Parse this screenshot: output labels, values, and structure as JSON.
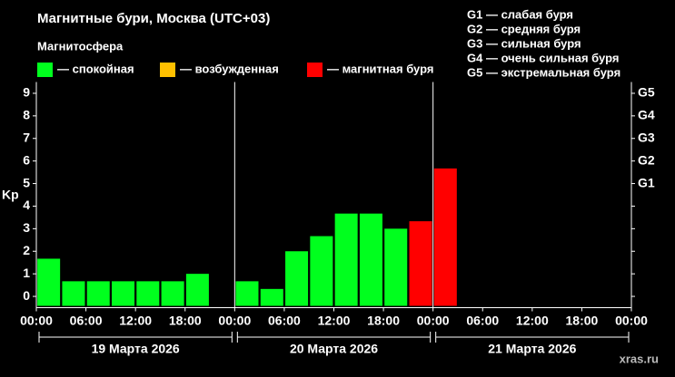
{
  "chart_data": {
    "type": "bar",
    "title": "Магнитные бури, Москва (UTC+03)",
    "legend_title": "Магнитосфера",
    "legend": [
      {
        "name": "— спокойная",
        "color": "#00ff1e"
      },
      {
        "name": "— возбужденная",
        "color": "#ffc000"
      },
      {
        "name": "— магнитная буря",
        "color": "#ff0000"
      }
    ],
    "g_legend": [
      "G1 — слабая буря",
      "G2 — средняя буря",
      "G3 — сильная буря",
      "G4 — очень сильная буря",
      "G5 — экстремальная буря"
    ],
    "y_label": "Kp",
    "watermark": "xras.ru",
    "x": [
      1.5,
      4.5,
      7.5,
      10.5,
      13.5,
      16.5,
      19.5,
      25.5,
      28.5,
      31.5,
      34.5,
      37.5,
      40.5,
      43.5,
      46.5,
      49.5
    ],
    "values": [
      1.67,
      0.67,
      0.67,
      0.67,
      0.67,
      0.67,
      1.0,
      0.67,
      0.33,
      2.0,
      2.67,
      3.67,
      3.67,
      3.0,
      3.33,
      5.67
    ],
    "colors": [
      "#00ff1e",
      "#00ff1e",
      "#00ff1e",
      "#00ff1e",
      "#00ff1e",
      "#00ff1e",
      "#00ff1e",
      "#00ff1e",
      "#00ff1e",
      "#00ff1e",
      "#00ff1e",
      "#00ff1e",
      "#00ff1e",
      "#00ff1e",
      "#ff0000",
      "#ff0000"
    ],
    "bar_width": 2.75,
    "xlim": [
      0,
      72
    ],
    "xticks": [
      {
        "value": 0,
        "label": "00:00"
      },
      {
        "value": 6,
        "label": "06:00"
      },
      {
        "value": 12,
        "label": "12:00"
      },
      {
        "value": 18,
        "label": "18:00"
      },
      {
        "value": 24,
        "label": "00:00"
      },
      {
        "value": 30,
        "label": "06:00"
      },
      {
        "value": 36,
        "label": "12:00"
      },
      {
        "value": 42,
        "label": "18:00"
      },
      {
        "value": 48,
        "label": "00:00"
      },
      {
        "value": 54,
        "label": "06:00"
      },
      {
        "value": 60,
        "label": "12:00"
      },
      {
        "value": 66,
        "label": "18:00"
      },
      {
        "value": 72,
        "label": "00:00"
      }
    ],
    "days": [
      {
        "label": "19 Марта 2026",
        "start": 0,
        "end": 24
      },
      {
        "label": "20 Марта 2026",
        "start": 24,
        "end": 48
      },
      {
        "label": "21 Марта 2026",
        "start": 48,
        "end": 72
      }
    ],
    "ylim": [
      -0.5,
      9.5
    ],
    "yticks": [
      0,
      1,
      2,
      3,
      4,
      5,
      6,
      7,
      8,
      9
    ],
    "y2lim": [
      -0.5,
      9.5
    ],
    "y2ticks": [
      {
        "value": 5,
        "label": "G1"
      },
      {
        "value": 6,
        "label": "G2"
      },
      {
        "value": 7,
        "label": "G3"
      },
      {
        "value": 8,
        "label": "G4"
      },
      {
        "value": 9,
        "label": "G5"
      }
    ]
  }
}
